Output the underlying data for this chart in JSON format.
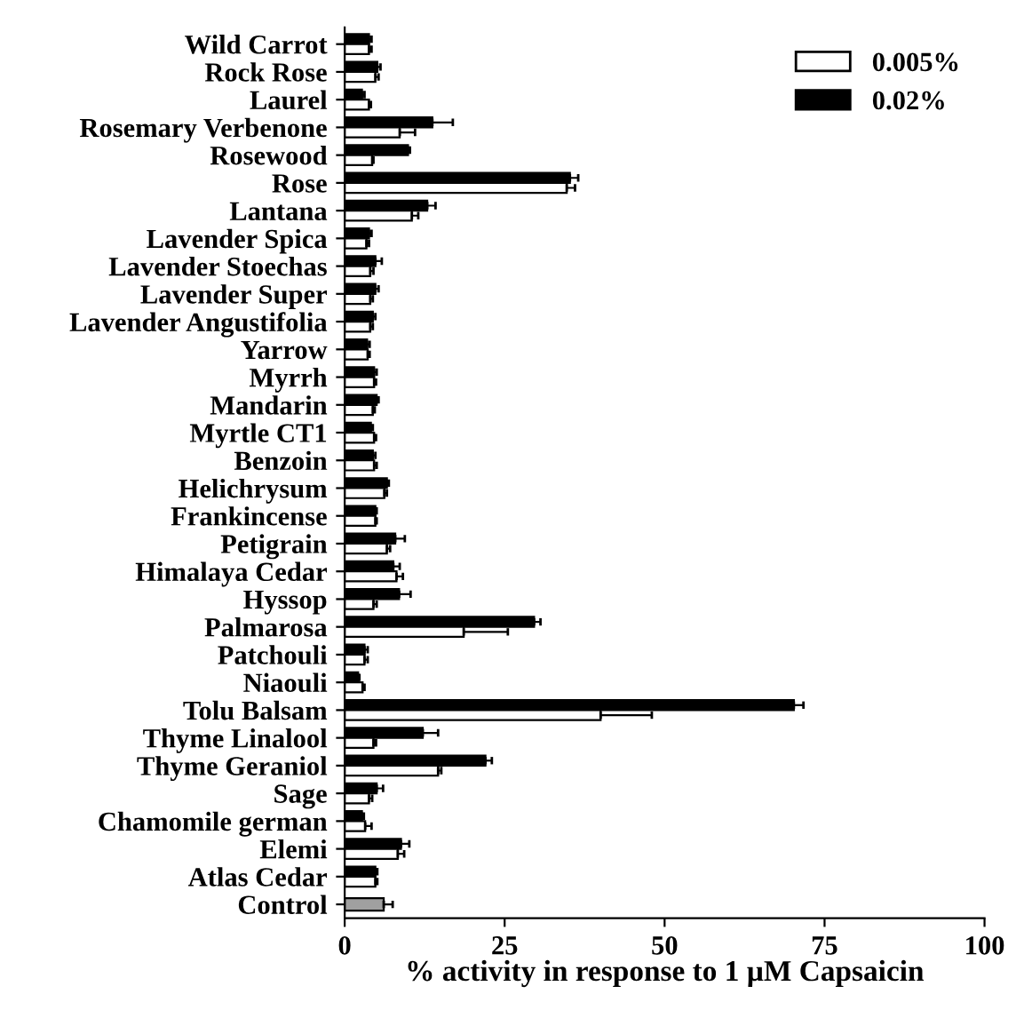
{
  "chart_data": {
    "type": "bar",
    "orientation": "horizontal",
    "xlabel": "% activity in response to 1 µM Capsaicin",
    "categories": [
      "Wild Carrot",
      "Rock Rose",
      "Laurel",
      "Rosemary Verbenone",
      "Rosewood",
      "Rose",
      "Lantana",
      "Lavender Spica",
      "Lavender Stoechas",
      "Lavender Super",
      "Lavender Angustifolia",
      "Yarrow",
      "Myrrh",
      "Mandarin",
      "Myrtle CT1",
      "Benzoin",
      "Helichrysum",
      "Frankincense",
      "Petigrain",
      "Himalaya Cedar",
      "Hyssop",
      "Palmarosa",
      "Patchouli",
      "Niaouli",
      "Tolu Balsam",
      "Thyme Linalool",
      "Thyme Geraniol",
      "Sage",
      "Chamomile german",
      "Elemi",
      "Atlas Cedar",
      "Control"
    ],
    "series": [
      {
        "name": "0.02%",
        "color": "#000000",
        "values": [
          3.8,
          5.1,
          2.7,
          13.7,
          9.9,
          35.2,
          12.9,
          3.8,
          4.8,
          4.8,
          4.4,
          3.5,
          4.6,
          5.0,
          4.1,
          4.4,
          6.6,
          4.8,
          7.9,
          7.6,
          8.5,
          29.6,
          3.1,
          2.1,
          70.2,
          12.2,
          22.0,
          5.0,
          2.7,
          8.8,
          4.8,
          null
        ],
        "errors": [
          [
            3.8,
            4.2
          ],
          [
            5.1,
            5.6
          ],
          [
            2.7,
            3.1
          ],
          [
            13.7,
            16.9
          ],
          [
            9.9,
            10.2
          ],
          [
            35.2,
            36.5
          ],
          [
            12.9,
            14.2
          ],
          [
            3.8,
            4.2
          ],
          [
            4.8,
            5.8
          ],
          [
            4.8,
            5.3
          ],
          [
            4.4,
            4.8
          ],
          [
            3.5,
            3.9
          ],
          [
            4.6,
            5.0
          ],
          [
            5.0,
            5.3
          ],
          [
            4.1,
            4.4
          ],
          [
            4.4,
            4.8
          ],
          [
            6.6,
            6.9
          ],
          [
            4.8,
            5.0
          ],
          [
            7.9,
            9.4
          ],
          [
            7.6,
            8.6
          ],
          [
            8.5,
            10.3
          ],
          [
            29.6,
            30.6
          ],
          [
            3.1,
            3.6
          ],
          [
            2.1,
            2.3
          ],
          [
            70.2,
            71.7
          ],
          [
            12.2,
            14.6
          ],
          [
            22.0,
            23.0
          ],
          [
            5.0,
            6.0
          ],
          [
            2.7,
            3.0
          ],
          [
            8.8,
            10.1
          ],
          [
            4.8,
            5.1
          ],
          null
        ]
      },
      {
        "name": "0.005%",
        "color": "#ffffff",
        "values": [
          3.8,
          4.8,
          3.8,
          8.6,
          4.3,
          34.7,
          10.5,
          3.4,
          4.0,
          4.0,
          4.0,
          3.6,
          4.6,
          4.4,
          4.6,
          4.6,
          6.2,
          4.8,
          6.6,
          8.1,
          4.5,
          18.6,
          3.1,
          2.8,
          40.0,
          4.5,
          14.6,
          3.8,
          3.2,
          8.3,
          4.8,
          null
        ],
        "errors": [
          [
            3.8,
            4.2
          ],
          [
            4.8,
            5.3
          ],
          [
            3.8,
            4.1
          ],
          [
            8.6,
            11.0
          ],
          [
            4.3,
            4.5
          ],
          [
            34.7,
            36.0
          ],
          [
            10.5,
            11.5
          ],
          [
            3.4,
            3.8
          ],
          [
            4.0,
            4.5
          ],
          [
            4.0,
            4.4
          ],
          [
            4.0,
            4.4
          ],
          [
            3.6,
            3.9
          ],
          [
            4.6,
            4.9
          ],
          [
            4.4,
            4.7
          ],
          [
            4.6,
            4.9
          ],
          [
            4.6,
            5.0
          ],
          [
            6.2,
            6.6
          ],
          [
            4.8,
            5.0
          ],
          [
            6.6,
            7.1
          ],
          [
            8.1,
            9.1
          ],
          [
            4.5,
            5.0
          ],
          [
            18.6,
            25.5
          ],
          [
            3.1,
            3.6
          ],
          [
            2.8,
            3.1
          ],
          [
            40.0,
            48.0
          ],
          [
            4.5,
            4.9
          ],
          [
            14.6,
            15.1
          ],
          [
            3.8,
            4.3
          ],
          [
            3.2,
            4.2
          ],
          [
            8.3,
            9.3
          ],
          [
            4.8,
            5.1
          ],
          null
        ]
      },
      {
        "color": "#a0a0a0",
        "values": [
          null,
          null,
          null,
          null,
          null,
          null,
          null,
          null,
          null,
          null,
          null,
          null,
          null,
          null,
          null,
          null,
          null,
          null,
          null,
          null,
          null,
          null,
          null,
          null,
          null,
          null,
          null,
          null,
          null,
          null,
          null,
          6.1
        ],
        "errors": [
          null,
          null,
          null,
          null,
          null,
          null,
          null,
          null,
          null,
          null,
          null,
          null,
          null,
          null,
          null,
          null,
          null,
          null,
          null,
          null,
          null,
          null,
          null,
          null,
          null,
          null,
          null,
          null,
          null,
          null,
          null,
          [
            6.1,
            7.5
          ]
        ]
      }
    ],
    "xlim": [
      0,
      100
    ],
    "xticks": [
      0,
      25,
      50,
      75,
      100
    ],
    "grid": false,
    "legend": "top right"
  }
}
